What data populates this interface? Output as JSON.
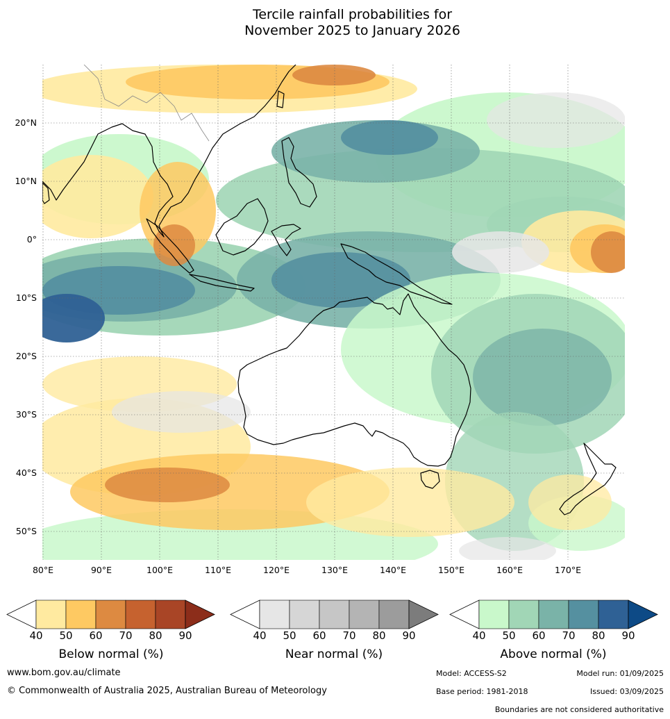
{
  "title": {
    "line1": "Tercile rainfall probabilities for",
    "line2": "November 2025 to January 2026"
  },
  "map": {
    "lat_labels": [
      "20°N",
      "10°N",
      "0°",
      "10°S",
      "20°S",
      "30°S",
      "40°S",
      "50°S"
    ],
    "lon_labels": [
      "80°E",
      "90°E",
      "100°E",
      "110°E",
      "120°E",
      "130°E",
      "140°E",
      "150°E",
      "160°E",
      "170°E"
    ]
  },
  "legends": [
    {
      "title": "Below normal (%)",
      "ticks": [
        "40",
        "50",
        "60",
        "70",
        "80",
        "90"
      ],
      "colors": [
        "#ffffff",
        "#ffeaa0",
        "#fec962",
        "#dd8a41",
        "#c6622f",
        "#a94526",
        "#8c2d1a"
      ]
    },
    {
      "title": "Near normal (%)",
      "ticks": [
        "40",
        "50",
        "60",
        "70",
        "80",
        "90"
      ],
      "colors": [
        "#ffffff",
        "#e6e6e6",
        "#d6d6d6",
        "#c6c6c6",
        "#b4b4b4",
        "#9c9c9c",
        "#7c7c7c"
      ]
    },
    {
      "title": "Above normal (%)",
      "ticks": [
        "40",
        "50",
        "60",
        "70",
        "80",
        "90"
      ],
      "colors": [
        "#ffffff",
        "#c9f8cb",
        "#a1d6b6",
        "#7ab3a8",
        "#5590a0",
        "#2f6195",
        "#0d4a86"
      ]
    }
  ],
  "footer": {
    "url": "www.bom.gov.au/climate",
    "copyright": "© Commonwealth of Australia 2025, Australian Bureau of Meteorology",
    "model": "Model: ACCESS-S2",
    "model_run": "Model run: 01/09/2025",
    "base_period": "Base period: 1981-2018",
    "issued": "Issued: 03/09/2025",
    "disclaimer": "Boundaries are not considered authoritative"
  }
}
